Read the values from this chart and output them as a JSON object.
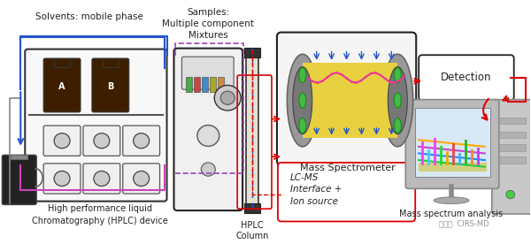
{
  "background_color": "#ffffff",
  "text_color": "#222222",
  "arrow_red": "#dd0000",
  "arrow_blue": "#2255cc",
  "arrow_pink": "#cc44bb",
  "arrow_gray": "#888888",
  "labels": {
    "solvents": "Solvents: mobile phase",
    "samples": "Samples:\nMultiple component\nMixtures",
    "hplc_device": "High performance liquid\nChromatography (HPLC) device",
    "hplc_column": "HPLC\nColumn",
    "mass_spec": "Mass Spectrometer",
    "lcms": "LC-MS\nInterface +\nIon source",
    "detection": "Detection",
    "mass_analysis": "Mass spectrum analysis",
    "watermark": "公众号: CIRS-MD"
  }
}
